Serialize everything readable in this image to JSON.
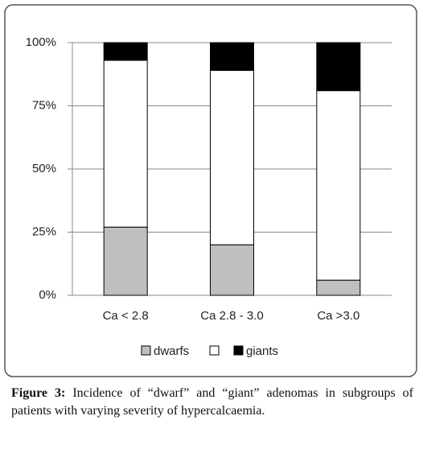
{
  "chart_data": {
    "type": "stacked-bar",
    "categories": [
      "Ca < 2.8",
      "Ca 2.8 - 3.0",
      "Ca >3.0"
    ],
    "series": [
      {
        "name": "dwarfs",
        "color": "#bfbfbf",
        "values": [
          27,
          20,
          6
        ]
      },
      {
        "name": "",
        "color": "#ffffff",
        "values": [
          66,
          69,
          75
        ]
      },
      {
        "name": "giants",
        "color": "#000000",
        "values": [
          7,
          11,
          19
        ]
      }
    ],
    "ylim": [
      0,
      100
    ],
    "yticks": [
      {
        "value": 0,
        "label": "0%"
      },
      {
        "value": 25,
        "label": "25%"
      },
      {
        "value": 50,
        "label": "50%"
      },
      {
        "value": 75,
        "label": "75%"
      },
      {
        "value": 100,
        "label": "100%"
      }
    ],
    "grid": true,
    "caption_label": "Figure 3:",
    "caption": "Incidence of “dwarf” and “giant” adenomas in subgroups of patients with varying severity of hypercalcaemia."
  }
}
